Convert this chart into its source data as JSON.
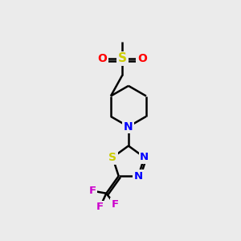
{
  "bg_color": "#ebebeb",
  "bond_color": "#000000",
  "bond_width": 1.8,
  "atom_colors": {
    "C": "#000000",
    "N": "#0000ff",
    "O": "#ff0000",
    "S_sulfonyl": "#cccc00",
    "S_thiadiazole": "#cccc00",
    "F": "#cc00cc"
  },
  "figsize": [
    3.0,
    3.0
  ],
  "dpi": 100
}
